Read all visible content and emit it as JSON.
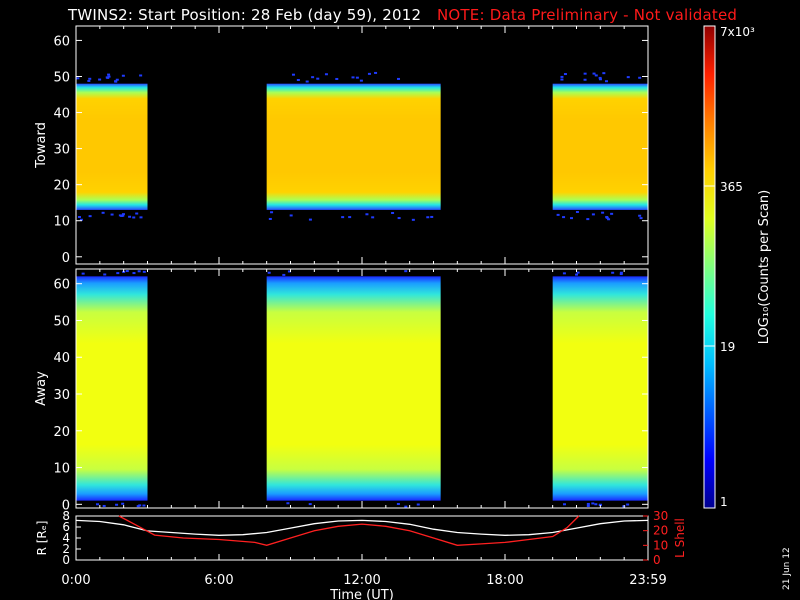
{
  "header": {
    "title": "TWINS2: Start Position: 28 Feb (day  59), 2012",
    "note": "NOTE: Data Preliminary - Not validated"
  },
  "side_date": "21 Jun 12",
  "colorbar": {
    "label": "LOG₁₀(Counts per Scan)",
    "ticks": [
      "7x10³",
      "365",
      "19",
      "1"
    ],
    "colors": [
      "#00008f",
      "#0000ff",
      "#005fff",
      "#00bfff",
      "#20ffdf",
      "#7fff7f",
      "#dfff20",
      "#ffcf00",
      "#ff7f00",
      "#ff2000",
      "#8f0000"
    ]
  },
  "chart_data": [
    {
      "type": "heatmap",
      "panel": "Toward",
      "ylabel": "Toward",
      "ylim": [
        -2,
        64
      ],
      "yticks": [
        "0",
        "10",
        "20",
        "30",
        "40",
        "50",
        "60"
      ],
      "xlim": [
        0,
        24
      ],
      "data_intervals_hours": [
        [
          0.0,
          3.0
        ],
        [
          8.0,
          15.3
        ],
        [
          20.0,
          24.0
        ]
      ],
      "active_sector_range": [
        13,
        48
      ],
      "core_sector_range": [
        16,
        46
      ],
      "core_level": "365-1000"
    },
    {
      "type": "heatmap",
      "panel": "Away",
      "ylabel": "Away",
      "ylim": [
        -1,
        64
      ],
      "yticks": [
        "0",
        "10",
        "20",
        "30",
        "40",
        "50",
        "60"
      ],
      "xlim": [
        0,
        24
      ],
      "data_intervals_hours": [
        [
          0.0,
          3.0
        ],
        [
          8.0,
          15.3
        ],
        [
          20.0,
          24.0
        ]
      ],
      "active_sector_range": [
        1,
        62
      ],
      "core_sector_range": [
        8,
        50
      ],
      "core_level": "100-300"
    },
    {
      "type": "line",
      "panel": "orbit",
      "ylabel_left": "R [Rₑ]",
      "ylabel_right": "L Shell",
      "ylim_left": [
        0,
        8
      ],
      "ylim_right": [
        0,
        30
      ],
      "yticks_left": [
        "0",
        "2",
        "4",
        "6",
        "8"
      ],
      "yticks_right": [
        "0",
        "10",
        "20",
        "30"
      ],
      "x_ticks": [
        "0:00",
        "6:00",
        "12:00",
        "18:00",
        "23:59"
      ],
      "xlabel": "Time (UT)",
      "series": [
        {
          "axis": "left",
          "color": "#ffffff",
          "x": [
            0,
            1,
            2,
            3,
            4,
            5,
            6,
            7,
            8,
            9,
            10,
            11,
            12,
            13,
            14,
            15,
            16,
            17,
            18,
            19,
            20,
            21,
            22,
            23,
            24
          ],
          "y": [
            7.2,
            7.0,
            6.4,
            5.3,
            5.0,
            4.7,
            4.5,
            4.6,
            5.0,
            5.8,
            6.6,
            7.1,
            7.2,
            7.0,
            6.5,
            5.6,
            5.0,
            4.7,
            4.5,
            4.6,
            5.0,
            5.8,
            6.6,
            7.1,
            7.2
          ]
        },
        {
          "axis": "right",
          "color": "#ff2020",
          "x": [
            1.8,
            2.5,
            3.3,
            4.5,
            6.0,
            7.5,
            8.0,
            9.0,
            10.0,
            11.0,
            12.0,
            13.0,
            14.0,
            15.0,
            16.0,
            17.0,
            18.0,
            19.0,
            20.0,
            20.6,
            21.1
          ],
          "y": [
            30,
            24,
            17,
            15,
            14,
            12,
            10,
            15,
            20,
            23,
            24.5,
            23,
            20,
            15,
            10,
            11,
            12,
            14,
            16,
            22,
            30
          ]
        }
      ]
    }
  ]
}
